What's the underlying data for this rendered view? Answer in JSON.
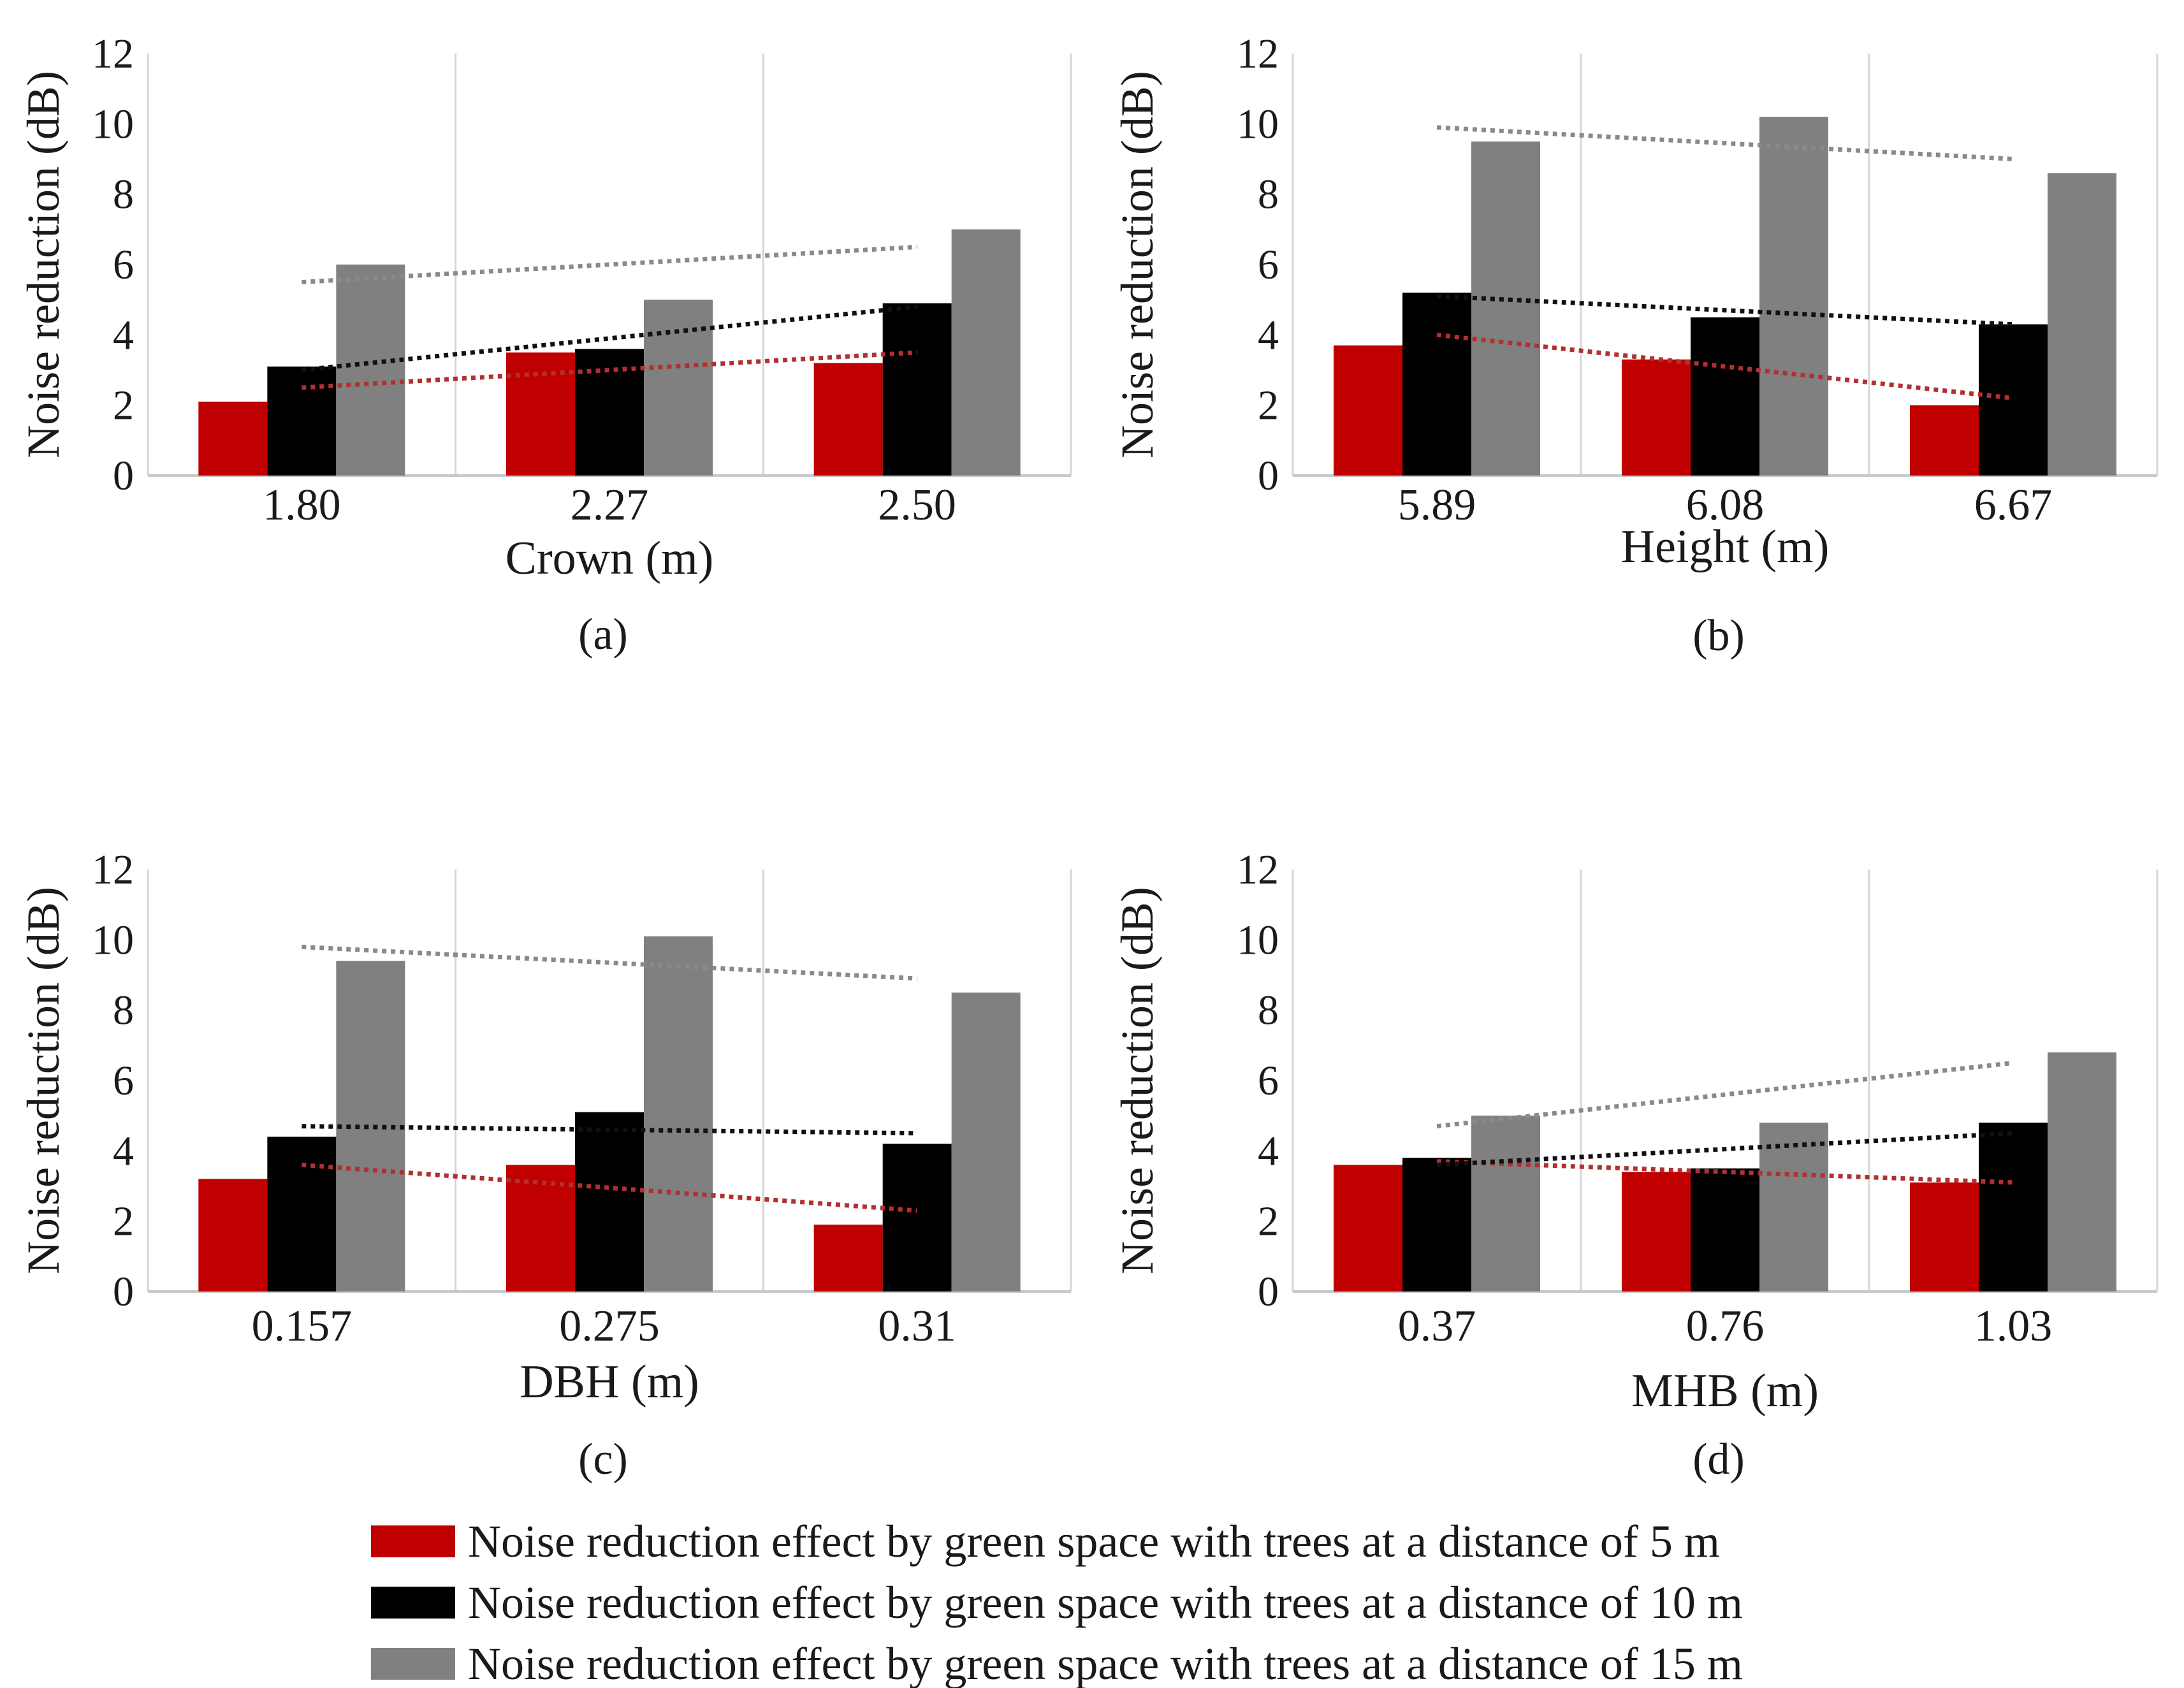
{
  "chart_data": [
    {
      "type": "bar",
      "panel_label": "(a)",
      "xlabel": "Crown (m)",
      "ylabel": "Noise reduction (dB)",
      "categories": [
        "1.80",
        "2.27",
        "2.50"
      ],
      "series": [
        {
          "name": "Noise reduction effect by green space with trees at a distance of 5 m",
          "values": [
            2.1,
            3.5,
            3.2
          ]
        },
        {
          "name": "Noise reduction effect by green space with trees at a distance of 10 m",
          "values": [
            3.1,
            3.6,
            4.9
          ]
        },
        {
          "name": "Noise reduction effect by green space with trees at a distance of 15 m",
          "values": [
            6.0,
            5.0,
            7.0
          ]
        }
      ],
      "trendlines": [
        {
          "series": "5 m",
          "start": 2.5,
          "end": 3.5
        },
        {
          "series": "10 m",
          "start": 3.0,
          "end": 4.8
        },
        {
          "series": "15 m",
          "start": 5.5,
          "end": 6.5
        }
      ],
      "ylim": [
        0,
        12
      ],
      "yticks": [
        "0",
        "2",
        "4",
        "6",
        "8",
        "10",
        "12"
      ],
      "grid": "vertical"
    },
    {
      "type": "bar",
      "panel_label": "(b)",
      "xlabel": "Height (m)",
      "ylabel": "Noise reduction (dB)",
      "categories": [
        "5.89",
        "6.08",
        "6.67"
      ],
      "series": [
        {
          "name": "Noise reduction effect by green space with trees at a distance of 5 m",
          "values": [
            3.7,
            3.3,
            2.0
          ]
        },
        {
          "name": "Noise reduction effect by green space with trees at a distance of 10 m",
          "values": [
            5.2,
            4.5,
            4.3
          ]
        },
        {
          "name": "Noise reduction effect by green space with trees at a distance of 15 m",
          "values": [
            9.5,
            10.2,
            8.6
          ]
        }
      ],
      "trendlines": [
        {
          "series": "5 m",
          "start": 4.0,
          "end": 2.2
        },
        {
          "series": "10 m",
          "start": 5.1,
          "end": 4.3
        },
        {
          "series": "15 m",
          "start": 9.9,
          "end": 9.0
        }
      ],
      "ylim": [
        0,
        12
      ],
      "yticks": [
        "0",
        "2",
        "4",
        "6",
        "8",
        "10",
        "12"
      ],
      "grid": "vertical"
    },
    {
      "type": "bar",
      "panel_label": "(c)",
      "xlabel": "DBH (m)",
      "ylabel": "Noise reduction (dB)",
      "categories": [
        "0.157",
        "0.275",
        "0.31"
      ],
      "series": [
        {
          "name": "Noise reduction effect by green space with trees at a distance of 5 m",
          "values": [
            3.2,
            3.6,
            1.9
          ]
        },
        {
          "name": "Noise reduction effect by green space with trees at a distance of 10 m",
          "values": [
            4.4,
            5.1,
            4.2
          ]
        },
        {
          "name": "Noise reduction effect by green space with trees at a distance of 15 m",
          "values": [
            9.4,
            10.1,
            8.5
          ]
        }
      ],
      "trendlines": [
        {
          "series": "5 m",
          "start": 3.6,
          "end": 2.3
        },
        {
          "series": "10 m",
          "start": 4.7,
          "end": 4.5
        },
        {
          "series": "15 m",
          "start": 9.8,
          "end": 8.9
        }
      ],
      "ylim": [
        0,
        12
      ],
      "yticks": [
        "0",
        "2",
        "4",
        "6",
        "8",
        "10",
        "12"
      ],
      "grid": "vertical"
    },
    {
      "type": "bar",
      "panel_label": "(d)",
      "xlabel": "MHB (m)",
      "ylabel": "Noise reduction (dB)",
      "categories": [
        "0.37",
        "0.76",
        "1.03"
      ],
      "series": [
        {
          "name": "Noise reduction effect by green space with trees at a distance of 5 m",
          "values": [
            3.6,
            3.4,
            3.1
          ]
        },
        {
          "name": "Noise reduction effect by green space with trees at a distance of 10 m",
          "values": [
            3.8,
            3.5,
            4.8
          ]
        },
        {
          "name": "Noise reduction effect by green space with trees at a distance of 15 m",
          "values": [
            5.0,
            4.8,
            6.8
          ]
        }
      ],
      "trendlines": [
        {
          "series": "5 m",
          "start": 3.7,
          "end": 3.1
        },
        {
          "series": "10 m",
          "start": 3.6,
          "end": 4.5
        },
        {
          "series": "15 m",
          "start": 4.7,
          "end": 6.5
        }
      ],
      "ylim": [
        0,
        12
      ],
      "yticks": [
        "0",
        "2",
        "4",
        "6",
        "8",
        "10",
        "12"
      ],
      "grid": "vertical"
    }
  ],
  "legend": {
    "items": [
      {
        "label": "Noise reduction effect by green space with trees at a distance of 5 m",
        "color": "#c00000"
      },
      {
        "label": "Noise reduction effect by green space with trees at a distance of 10 m",
        "color": "#000000"
      },
      {
        "label": "Noise reduction effect by green space with trees at a distance of 15 m",
        "color": "#808080"
      }
    ]
  },
  "colors": {
    "series": [
      "#c00000",
      "#000000",
      "#808080"
    ],
    "trend": [
      "#b23030",
      "#111111",
      "#8a8a8a"
    ],
    "grid": "#d6d6d6",
    "axis": "#c8c8c8"
  }
}
